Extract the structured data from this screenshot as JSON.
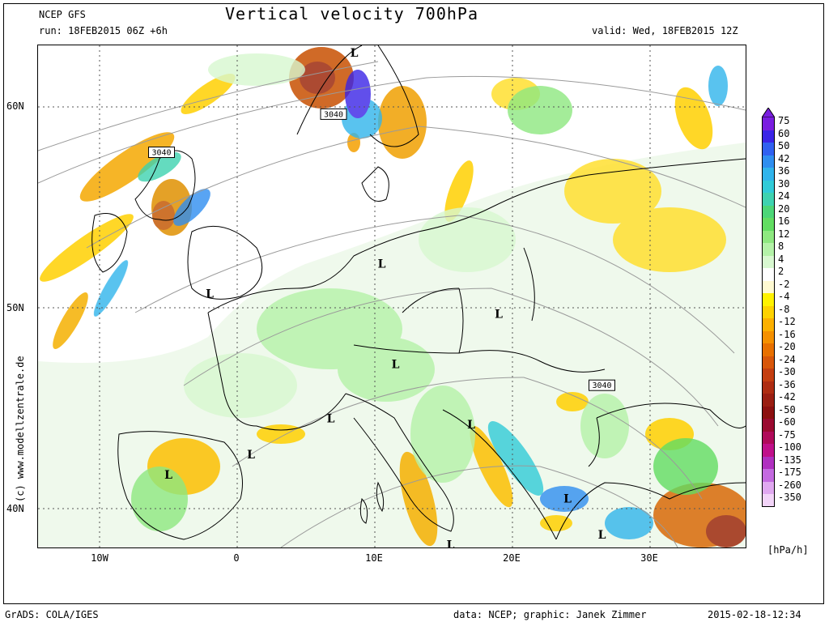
{
  "header": {
    "model": "NCEP GFS",
    "run": "run: 18FEB2015 06Z +6h",
    "title": "Vertical velocity 700hPa",
    "valid": "valid: Wed, 18FEB2015 12Z"
  },
  "map": {
    "lat_labels": [
      "60N",
      "50N",
      "40N"
    ],
    "lon_labels": [
      "10W",
      "0",
      "10E",
      "20E",
      "30E"
    ],
    "credit": "(c) www.modellzentrale.de",
    "pressure_centers": [
      {
        "label": "L",
        "lon": 8.5,
        "lat": 62.5
      },
      {
        "label": "L",
        "lon": 10.5,
        "lat": 52
      },
      {
        "label": "L",
        "lon": -2,
        "lat": 50.5
      },
      {
        "label": "L",
        "lon": 19,
        "lat": 49.5
      },
      {
        "label": "L",
        "lon": 11.5,
        "lat": 47
      },
      {
        "label": "L",
        "lon": 6.8,
        "lat": 44.3
      },
      {
        "label": "L",
        "lon": 17,
        "lat": 44
      },
      {
        "label": "L",
        "lon": 1,
        "lat": 42.5
      },
      {
        "label": "L",
        "lon": -5,
        "lat": 41.5
      },
      {
        "label": "L",
        "lon": 24,
        "lat": 40.3
      },
      {
        "label": "L",
        "lon": 26.5,
        "lat": 38.5
      },
      {
        "label": "L",
        "lon": 15.5,
        "lat": 38
      }
    ],
    "height_labels": [
      {
        "label": "3040",
        "lon": 7,
        "lat": 59.5
      },
      {
        "label": "3040",
        "lon": -5.5,
        "lat": 57.6
      },
      {
        "label": "3040",
        "lon": 26.5,
        "lat": 46
      }
    ]
  },
  "legend": {
    "units": "[hPa/h]",
    "levels": [
      "75",
      "60",
      "50",
      "42",
      "36",
      "30",
      "24",
      "20",
      "16",
      "12",
      "8",
      "4",
      "2",
      "-2",
      "-4",
      "-8",
      "-12",
      "-16",
      "-20",
      "-24",
      "-30",
      "-36",
      "-42",
      "-50",
      "-60",
      "-75",
      "-100",
      "-135",
      "-175",
      "-260",
      "-350"
    ],
    "colors": [
      "#7a1ee0",
      "#3a24e6",
      "#3060f0",
      "#2f8ef0",
      "#30b4ec",
      "#30cbd8",
      "#3ed2b0",
      "#4cd678",
      "#62dd62",
      "#8ee880",
      "#b4f2a8",
      "#d8f8d0",
      "#ffffff",
      "#fffad2",
      "#fff200",
      "#fed200",
      "#fcb000",
      "#f59000",
      "#e87000",
      "#d8560a",
      "#c43e10",
      "#ae2c12",
      "#9a1e12",
      "#8c1010",
      "#9a0a30",
      "#b00a5a",
      "#c0108a",
      "#b030c0",
      "#c46ae0",
      "#e0a8f0",
      "#f2d4f8"
    ]
  },
  "footer": {
    "left": "GrADS: COLA/IGES",
    "center": "data: NCEP; graphic: Janek Zimmer",
    "right": "2015-02-18-12:34"
  }
}
